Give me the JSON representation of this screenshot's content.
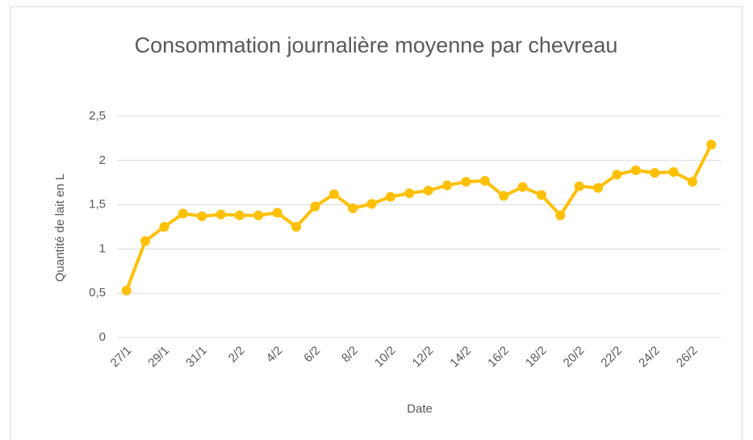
{
  "chart_data": {
    "type": "line",
    "title": "Consommation journalière moyenne par chevreau",
    "x_label": "Date",
    "y_label": "Quantité de lait en L",
    "categories": [
      "27/1",
      null,
      "29/1",
      null,
      "31/1",
      null,
      "2/2",
      null,
      "4/2",
      null,
      "6/2",
      null,
      "8/2",
      null,
      "10/2",
      null,
      "12/2",
      null,
      "14/2",
      null,
      "16/2",
      null,
      "18/2",
      null,
      "20/2",
      null,
      "22/2",
      null,
      "24/2",
      null,
      "26/2",
      null
    ],
    "series": [
      {
        "name": "Quantité de lait en L",
        "color": "#FFC000",
        "values": [
          0.53,
          1.09,
          1.25,
          1.4,
          1.37,
          1.39,
          1.38,
          1.38,
          1.41,
          1.25,
          1.48,
          1.62,
          1.46,
          1.51,
          1.59,
          1.63,
          1.66,
          1.72,
          1.76,
          1.77,
          1.6,
          1.7,
          1.61,
          1.38,
          1.71,
          1.69,
          1.84,
          1.89,
          1.86,
          1.87,
          1.76,
          2.18
        ]
      }
    ],
    "ylim": [
      0,
      2.5
    ],
    "yticks": [
      0,
      {
        "value": 0.5,
        "label": "0,5"
      },
      1,
      {
        "value": 1.5,
        "label": "1,5"
      },
      2,
      {
        "value": 2.5,
        "label": "2,5"
      }
    ],
    "grid": true
  }
}
